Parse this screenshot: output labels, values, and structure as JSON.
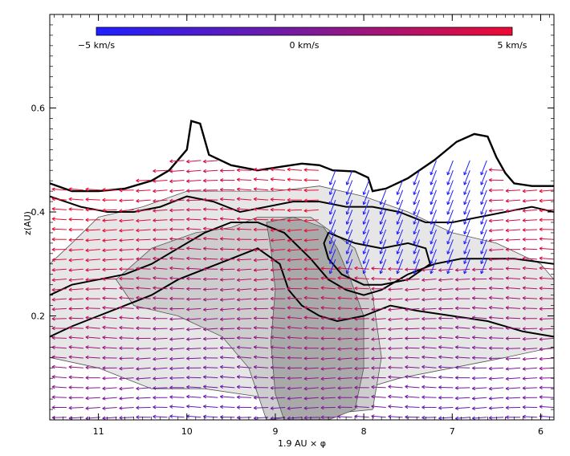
{
  "chart_data": {
    "type": "vector-field-contour",
    "title": "",
    "xlabel": "1.9 AU × φ",
    "ylabel": "z(AU)",
    "xlim": [
      11.55,
      5.85
    ],
    "ylim": [
      0.0,
      0.78
    ],
    "x_ticks": [
      {
        "value": 11,
        "label": "11"
      },
      {
        "value": 10,
        "label": "10"
      },
      {
        "value": 9,
        "label": "9"
      },
      {
        "value": 8,
        "label": "8"
      },
      {
        "value": 7,
        "label": "7"
      },
      {
        "value": 6,
        "label": "6"
      }
    ],
    "y_ticks": [
      {
        "value": 0.2,
        "label": "0.2"
      },
      {
        "value": 0.4,
        "label": "0.4"
      },
      {
        "value": 0.6,
        "label": "0.6"
      }
    ],
    "colorbar": {
      "min": -5,
      "max": 5,
      "labels": [
        "−5 km/s",
        "0 km/s",
        "5 km/s"
      ],
      "colors": [
        "#1f1fff",
        "#7a1a9c",
        "#ee0a33"
      ]
    },
    "outer_contour": [
      [
        11.55,
        0.455
      ],
      [
        11.3,
        0.44
      ],
      [
        11.0,
        0.44
      ],
      [
        10.7,
        0.445
      ],
      [
        10.4,
        0.46
      ],
      [
        10.2,
        0.48
      ],
      [
        10.0,
        0.52
      ],
      [
        9.95,
        0.575
      ],
      [
        9.85,
        0.57
      ],
      [
        9.75,
        0.51
      ],
      [
        9.5,
        0.49
      ],
      [
        9.2,
        0.48
      ],
      [
        8.9,
        0.488
      ],
      [
        8.7,
        0.493
      ],
      [
        8.5,
        0.49
      ],
      [
        8.35,
        0.48
      ],
      [
        8.1,
        0.478
      ],
      [
        7.95,
        0.466
      ],
      [
        7.9,
        0.44
      ],
      [
        7.75,
        0.445
      ],
      [
        7.5,
        0.465
      ],
      [
        7.2,
        0.5
      ],
      [
        6.95,
        0.535
      ],
      [
        6.75,
        0.55
      ],
      [
        6.6,
        0.545
      ],
      [
        6.5,
        0.505
      ],
      [
        6.4,
        0.475
      ],
      [
        6.3,
        0.455
      ],
      [
        6.1,
        0.45
      ],
      [
        5.85,
        0.45
      ]
    ],
    "contour_levels": [
      {
        "name": "upper",
        "points": [
          [
            11.55,
            0.43
          ],
          [
            11.2,
            0.41
          ],
          [
            10.9,
            0.4
          ],
          [
            10.6,
            0.4
          ],
          [
            10.3,
            0.41
          ],
          [
            10.0,
            0.43
          ],
          [
            9.7,
            0.42
          ],
          [
            9.4,
            0.4
          ],
          [
            9.1,
            0.41
          ],
          [
            8.8,
            0.42
          ],
          [
            8.5,
            0.42
          ],
          [
            8.2,
            0.41
          ],
          [
            7.9,
            0.41
          ],
          [
            7.6,
            0.4
          ],
          [
            7.3,
            0.38
          ],
          [
            7.0,
            0.38
          ],
          [
            6.7,
            0.39
          ],
          [
            6.4,
            0.4
          ],
          [
            6.1,
            0.41
          ],
          [
            5.85,
            0.4
          ]
        ]
      },
      {
        "name": "middle",
        "points": [
          [
            11.55,
            0.24
          ],
          [
            11.3,
            0.26
          ],
          [
            11.0,
            0.27
          ],
          [
            10.7,
            0.28
          ],
          [
            10.4,
            0.3
          ],
          [
            10.1,
            0.33
          ],
          [
            9.8,
            0.36
          ],
          [
            9.5,
            0.38
          ],
          [
            9.2,
            0.38
          ],
          [
            8.9,
            0.36
          ],
          [
            8.6,
            0.31
          ],
          [
            8.4,
            0.27
          ],
          [
            8.2,
            0.25
          ],
          [
            8.0,
            0.24
          ],
          [
            7.8,
            0.25
          ],
          [
            7.5,
            0.28
          ],
          [
            7.2,
            0.3
          ],
          [
            6.9,
            0.31
          ],
          [
            6.6,
            0.31
          ],
          [
            6.3,
            0.31
          ],
          [
            5.85,
            0.3
          ]
        ]
      },
      {
        "name": "lower",
        "points": [
          [
            11.55,
            0.16
          ],
          [
            11.3,
            0.18
          ],
          [
            11.0,
            0.2
          ],
          [
            10.7,
            0.22
          ],
          [
            10.4,
            0.24
          ],
          [
            10.1,
            0.27
          ],
          [
            9.8,
            0.29
          ],
          [
            9.5,
            0.31
          ],
          [
            9.2,
            0.33
          ],
          [
            8.95,
            0.3
          ],
          [
            8.85,
            0.25
          ],
          [
            8.7,
            0.22
          ],
          [
            8.5,
            0.2
          ],
          [
            8.3,
            0.19
          ],
          [
            8.0,
            0.2
          ],
          [
            7.7,
            0.22
          ],
          [
            7.4,
            0.21
          ],
          [
            7.0,
            0.2
          ],
          [
            6.6,
            0.19
          ],
          [
            6.2,
            0.17
          ],
          [
            5.85,
            0.16
          ]
        ]
      },
      {
        "name": "inner-loop",
        "points": [
          [
            8.4,
            0.36
          ],
          [
            8.1,
            0.34
          ],
          [
            7.8,
            0.33
          ],
          [
            7.5,
            0.34
          ],
          [
            7.3,
            0.33
          ],
          [
            7.25,
            0.3
          ],
          [
            7.5,
            0.27
          ],
          [
            7.8,
            0.26
          ],
          [
            8.0,
            0.26
          ],
          [
            8.25,
            0.28
          ],
          [
            8.4,
            0.31
          ],
          [
            8.45,
            0.34
          ],
          [
            8.4,
            0.36
          ]
        ]
      }
    ],
    "shaded_regions": [
      {
        "name": "dense-region",
        "shade": "dark",
        "points": [
          [
            9.1,
            0.38
          ],
          [
            8.8,
            0.39
          ],
          [
            8.45,
            0.37
          ],
          [
            8.3,
            0.33
          ],
          [
            8.15,
            0.27
          ],
          [
            8.0,
            0.2
          ],
          [
            8.0,
            0.1
          ],
          [
            8.1,
            0.02
          ],
          [
            8.4,
            0.0
          ],
          [
            8.9,
            0.0
          ],
          [
            9.0,
            0.05
          ],
          [
            9.05,
            0.15
          ],
          [
            9.0,
            0.25
          ],
          [
            9.05,
            0.33
          ]
        ]
      },
      {
        "name": "mid-region",
        "shade": "mid",
        "points": [
          [
            10.4,
            0.33
          ],
          [
            9.9,
            0.36
          ],
          [
            9.5,
            0.37
          ],
          [
            9.2,
            0.39
          ],
          [
            8.6,
            0.39
          ],
          [
            8.1,
            0.33
          ],
          [
            7.9,
            0.24
          ],
          [
            7.8,
            0.12
          ],
          [
            7.9,
            0.02
          ],
          [
            9.1,
            0.0
          ],
          [
            9.3,
            0.1
          ],
          [
            9.6,
            0.16
          ],
          [
            10.1,
            0.2
          ],
          [
            10.6,
            0.22
          ],
          [
            10.8,
            0.27
          ]
        ]
      },
      {
        "name": "light-region",
        "shade": "light",
        "points": [
          [
            11.55,
            0.3
          ],
          [
            11.3,
            0.34
          ],
          [
            11.0,
            0.39
          ],
          [
            10.5,
            0.41
          ],
          [
            10.0,
            0.44
          ],
          [
            9.5,
            0.44
          ],
          [
            9.0,
            0.44
          ],
          [
            8.5,
            0.45
          ],
          [
            8.0,
            0.43
          ],
          [
            7.5,
            0.4
          ],
          [
            7.0,
            0.36
          ],
          [
            6.5,
            0.34
          ],
          [
            6.0,
            0.3
          ],
          [
            5.85,
            0.27
          ],
          [
            5.85,
            0.14
          ],
          [
            6.4,
            0.12
          ],
          [
            7.0,
            0.1
          ],
          [
            7.6,
            0.08
          ],
          [
            8.2,
            0.05
          ],
          [
            9.0,
            0.04
          ],
          [
            9.8,
            0.06
          ],
          [
            10.4,
            0.06
          ],
          [
            11.0,
            0.1
          ],
          [
            11.55,
            0.12
          ]
        ]
      }
    ],
    "vector_field": {
      "x_start": 11.55,
      "x_end": 5.85,
      "x_step": 0.19,
      "z_start": 0.005,
      "z_end": 0.5,
      "z_step": 0.019,
      "typical_velocity_km_s": 4,
      "infall_region": {
        "x_min": 6.6,
        "x_max": 8.5,
        "z_min": 0.3,
        "z_max": 0.5,
        "velocity_km_s": -5,
        "direction": "down-left"
      }
    }
  }
}
